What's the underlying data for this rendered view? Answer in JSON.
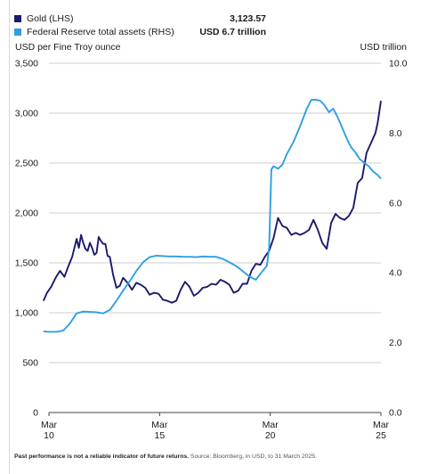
{
  "legend": {
    "items": [
      {
        "name": "Gold (LHS)",
        "value": "3,123.57",
        "color": "#1a1a6e"
      },
      {
        "name": "Federal Reserve total assets (RHS)",
        "value": "USD 6.7 trillion",
        "color": "#2f9fe0"
      }
    ]
  },
  "axes": {
    "left_title": "USD per Fine Troy ounce",
    "right_title": "USD trillion"
  },
  "footnote": {
    "bold": "Past performance is not a reliable indicator of future returns.",
    "source": "Source: Bloomberg, in USD, to 31 March 2025."
  },
  "chart_data": {
    "type": "line",
    "x_ticks": [
      {
        "line1": "Mar",
        "line2": "10",
        "x": 2010.25
      },
      {
        "line1": "Mar",
        "line2": "15",
        "x": 2015.25
      },
      {
        "line1": "Mar",
        "line2": "20",
        "x": 2020.25
      },
      {
        "line1": "Mar",
        "line2": "25",
        "x": 2025.25
      }
    ],
    "xlim": [
      2010.25,
      2025.25
    ],
    "ylim_left": [
      0,
      3500
    ],
    "yticks_left": [
      "0",
      "500",
      "1,000",
      "1,500",
      "2,000",
      "2,500",
      "3,000",
      "3,500"
    ],
    "ylim_right": [
      0,
      10
    ],
    "yticks_right": [
      "0.0",
      "2.0",
      "4.0",
      "6.0",
      "8.0",
      "10.0"
    ],
    "grid": "horizontal",
    "series": [
      {
        "name": "Gold (LHS)",
        "axis": "left",
        "color": "#1a1a6e",
        "x": [
          2010.0,
          2010.16,
          2010.35,
          2010.55,
          2010.75,
          2010.95,
          2011.1,
          2011.3,
          2011.5,
          2011.6,
          2011.7,
          2011.8,
          2011.9,
          2012.0,
          2012.1,
          2012.2,
          2012.3,
          2012.4,
          2012.5,
          2012.6,
          2012.7,
          2012.8,
          2012.9,
          2013.0,
          2013.15,
          2013.3,
          2013.45,
          2013.6,
          2013.8,
          2014.0,
          2014.2,
          2014.4,
          2014.6,
          2014.8,
          2015.0,
          2015.2,
          2015.4,
          2015.6,
          2015.8,
          2016.0,
          2016.2,
          2016.4,
          2016.6,
          2016.8,
          2017.0,
          2017.2,
          2017.4,
          2017.6,
          2017.8,
          2018.0,
          2018.2,
          2018.4,
          2018.6,
          2018.8,
          2019.0,
          2019.2,
          2019.4,
          2019.6,
          2019.8,
          2020.0,
          2020.2,
          2020.4,
          2020.6,
          2020.8,
          2021.0,
          2021.2,
          2021.4,
          2021.6,
          2021.8,
          2022.0,
          2022.2,
          2022.4,
          2022.6,
          2022.8,
          2023.0,
          2023.2,
          2023.4,
          2023.6,
          2023.8,
          2024.0,
          2024.2,
          2024.4,
          2024.6,
          2024.8,
          2025.0,
          2025.1,
          2025.25
        ],
        "y": [
          1120,
          1200,
          1260,
          1350,
          1420,
          1360,
          1450,
          1560,
          1740,
          1650,
          1780,
          1700,
          1640,
          1620,
          1700,
          1650,
          1580,
          1600,
          1760,
          1720,
          1690,
          1690,
          1570,
          1560,
          1380,
          1250,
          1270,
          1350,
          1300,
          1230,
          1300,
          1280,
          1250,
          1180,
          1200,
          1190,
          1130,
          1120,
          1100,
          1120,
          1230,
          1310,
          1260,
          1170,
          1200,
          1250,
          1260,
          1290,
          1280,
          1330,
          1310,
          1280,
          1200,
          1220,
          1290,
          1290,
          1420,
          1490,
          1480,
          1560,
          1620,
          1750,
          1950,
          1870,
          1850,
          1780,
          1800,
          1780,
          1800,
          1830,
          1930,
          1830,
          1700,
          1640,
          1900,
          1990,
          1950,
          1930,
          1970,
          2050,
          2300,
          2350,
          2600,
          2700,
          2800,
          2900,
          3123.57
        ]
      },
      {
        "name": "Federal Reserve total assets (RHS)",
        "axis": "right",
        "color": "#2f9fe0",
        "x": [
          2010.0,
          2010.3,
          2010.6,
          2010.9,
          2011.2,
          2011.5,
          2011.8,
          2012.1,
          2012.4,
          2012.7,
          2013.0,
          2013.3,
          2013.6,
          2013.9,
          2014.2,
          2014.5,
          2014.8,
          2015.1,
          2015.4,
          2015.7,
          2016.0,
          2016.3,
          2016.6,
          2016.9,
          2017.2,
          2017.5,
          2017.8,
          2018.1,
          2018.4,
          2018.7,
          2019.0,
          2019.3,
          2019.6,
          2019.9,
          2020.1,
          2020.2,
          2020.3,
          2020.4,
          2020.6,
          2020.8,
          2021.0,
          2021.3,
          2021.6,
          2021.9,
          2022.1,
          2022.3,
          2022.5,
          2022.7,
          2022.9,
          2023.1,
          2023.3,
          2023.5,
          2023.7,
          2023.9,
          2024.1,
          2024.3,
          2024.5,
          2024.7,
          2024.9,
          2025.1,
          2025.25
        ],
        "y": [
          2.32,
          2.31,
          2.31,
          2.35,
          2.55,
          2.84,
          2.89,
          2.88,
          2.87,
          2.84,
          2.94,
          3.2,
          3.49,
          3.76,
          4.05,
          4.3,
          4.45,
          4.49,
          4.48,
          4.47,
          4.47,
          4.46,
          4.46,
          4.45,
          4.47,
          4.46,
          4.46,
          4.4,
          4.3,
          4.2,
          4.05,
          3.9,
          3.8,
          4.05,
          4.2,
          4.72,
          6.96,
          7.05,
          6.98,
          7.1,
          7.4,
          7.75,
          8.2,
          8.7,
          8.95,
          8.96,
          8.93,
          8.8,
          8.6,
          8.7,
          8.45,
          8.15,
          7.85,
          7.6,
          7.45,
          7.25,
          7.15,
          7.05,
          6.9,
          6.8,
          6.7
        ]
      }
    ]
  }
}
